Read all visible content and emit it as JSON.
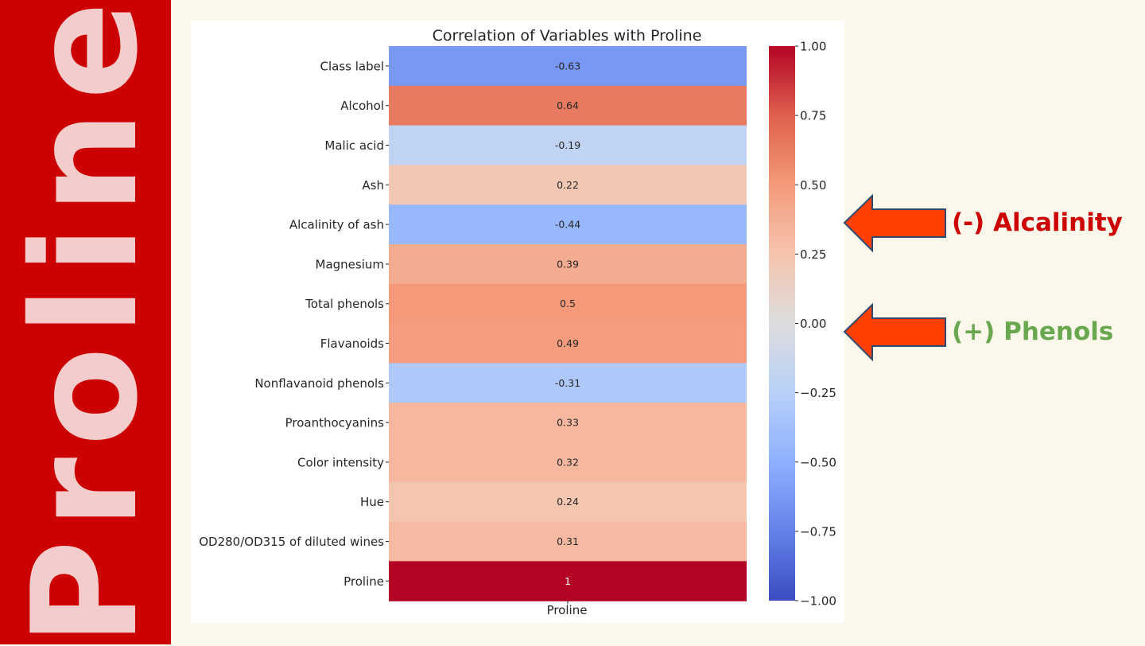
{
  "slide": {
    "side_title": "Proline",
    "side_color": "#cc0000",
    "side_text_color": "#f4cccc",
    "background": "#fcf7eb"
  },
  "callouts": [
    {
      "icon": "left-arrow-icon",
      "label": "(-) Alcalinity",
      "label_color": "#cc0000",
      "arrow_color": "#ff4000"
    },
    {
      "icon": "left-arrow-icon",
      "label": "(+) Phenols",
      "label_color": "#6aa84f",
      "arrow_color": "#ff4000"
    }
  ],
  "chart_data": {
    "type": "heatmap",
    "title": "Correlation of Variables with Proline",
    "xlabel": "Proline",
    "rows": [
      "Class label",
      "Alcohol",
      "Malic acid",
      "Ash",
      "Alcalinity of ash",
      "Magnesium",
      "Total phenols",
      "Flavanoids",
      "Nonflavanoid phenols",
      "Proanthocyanins",
      "Color intensity",
      "Hue",
      "OD280/OD315 of diluted wines",
      "Proline"
    ],
    "values": [
      -0.63,
      0.64,
      -0.19,
      0.22,
      -0.44,
      0.39,
      0.5,
      0.49,
      -0.31,
      0.33,
      0.32,
      0.24,
      0.31,
      1
    ],
    "value_labels": [
      "-0.63",
      "0.64",
      "-0.19",
      "0.22",
      "-0.44",
      "0.39",
      "0.5",
      "0.49",
      "-0.31",
      "0.33",
      "0.32",
      "0.24",
      "0.31",
      "1"
    ],
    "colormap": "coolwarm",
    "vmin": -1,
    "vmax": 1,
    "colorbar_ticks": [
      1.0,
      0.75,
      0.5,
      0.25,
      0.0,
      -0.25,
      -0.5,
      -0.75,
      -1.0
    ],
    "colorbar_tick_labels": [
      "1.00",
      "0.75",
      "0.50",
      "0.25",
      "0.00",
      "−0.25",
      "−0.50",
      "−0.75",
      "−1.00"
    ]
  }
}
